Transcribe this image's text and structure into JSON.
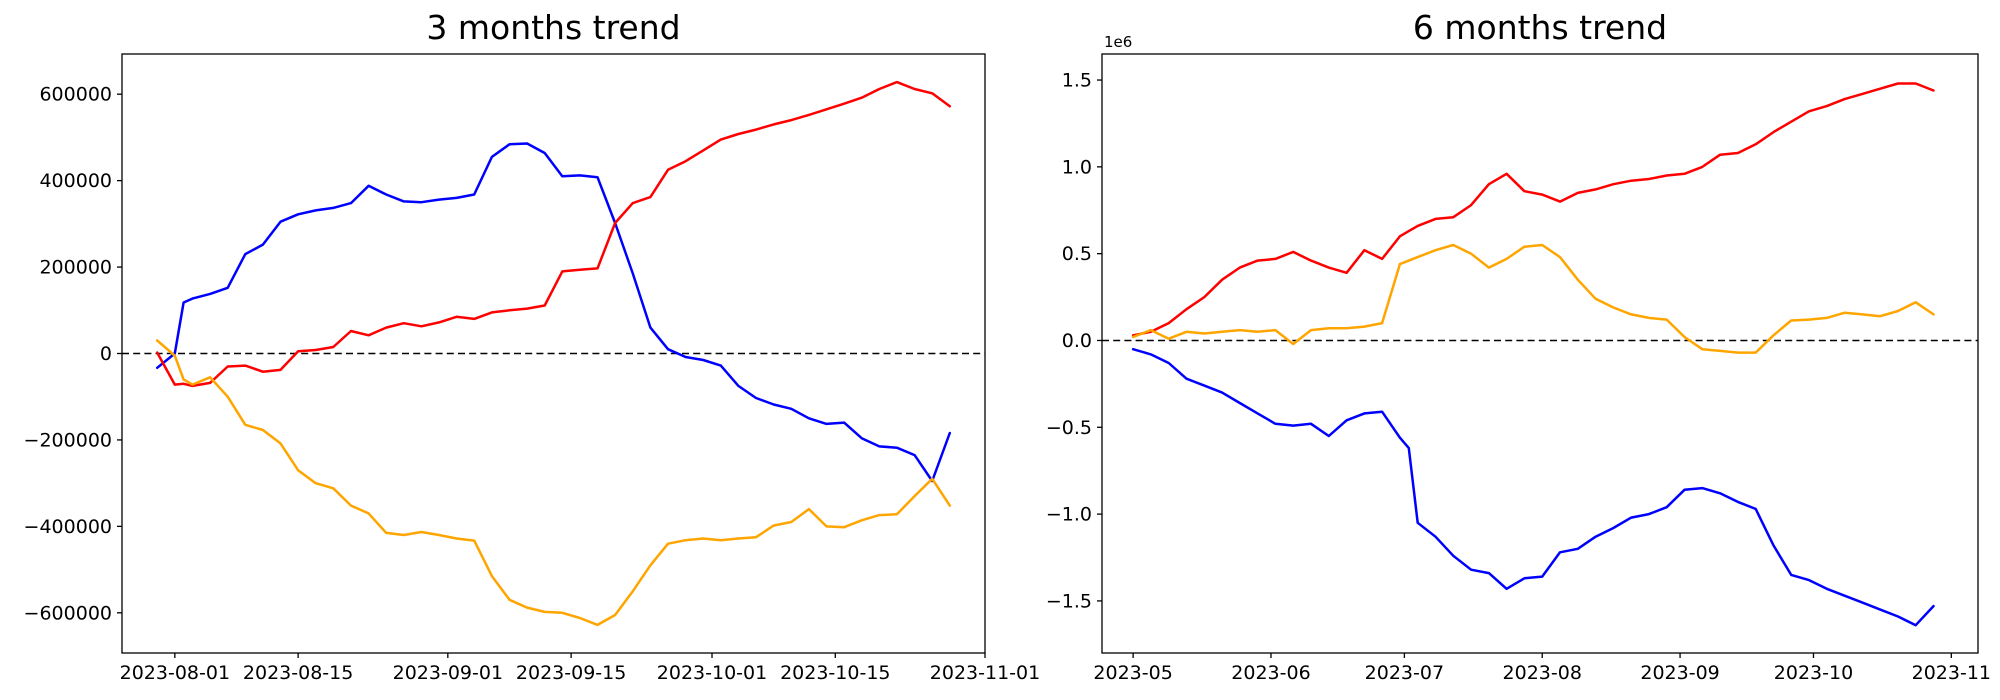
{
  "figure": {
    "background": "#ffffff"
  },
  "chart_data": [
    {
      "type": "line",
      "title": "3 months trend",
      "xlabel": "",
      "ylabel": "",
      "grid": false,
      "legend": "none",
      "zero_line": true,
      "xlim": [
        "2023-07-26",
        "2023-11-01"
      ],
      "ylim": [
        -693000,
        693000
      ],
      "x_ticks": [
        "2023-08-01",
        "2023-08-15",
        "2023-09-01",
        "2023-09-15",
        "2023-10-01",
        "2023-10-15",
        "2023-11-01"
      ],
      "x_tick_labels": [
        "2023-08-01",
        "2023-08-15",
        "2023-09-01",
        "2023-09-15",
        "2023-10-01",
        "2023-10-15",
        "2023-11-01"
      ],
      "y_ticks": [
        600000,
        400000,
        200000,
        0,
        -200000,
        -400000,
        -600000
      ],
      "y_tick_labels": [
        "600000",
        "400000",
        "200000",
        "0",
        "−200000",
        "−400000",
        "−600000"
      ],
      "x": [
        "2023-07-30",
        "2023-08-01",
        "2023-08-02",
        "2023-08-03",
        "2023-08-05",
        "2023-08-07",
        "2023-08-09",
        "2023-08-11",
        "2023-08-13",
        "2023-08-15",
        "2023-08-17",
        "2023-08-19",
        "2023-08-21",
        "2023-08-23",
        "2023-08-25",
        "2023-08-27",
        "2023-08-29",
        "2023-08-31",
        "2023-09-02",
        "2023-09-04",
        "2023-09-06",
        "2023-09-08",
        "2023-09-10",
        "2023-09-12",
        "2023-09-14",
        "2023-09-16",
        "2023-09-18",
        "2023-09-20",
        "2023-09-22",
        "2023-09-24",
        "2023-09-26",
        "2023-09-28",
        "2023-09-30",
        "2023-10-02",
        "2023-10-04",
        "2023-10-06",
        "2023-10-08",
        "2023-10-10",
        "2023-10-12",
        "2023-10-14",
        "2023-10-16",
        "2023-10-18",
        "2023-10-20",
        "2023-10-22",
        "2023-10-24",
        "2023-10-26",
        "2023-10-28"
      ],
      "series": [
        {
          "name": "blue",
          "color": "#0000ff",
          "values": [
            -33000,
            0,
            118000,
            127000,
            138000,
            152000,
            230000,
            252000,
            305000,
            322000,
            331000,
            337000,
            348000,
            388000,
            368000,
            352000,
            350000,
            356000,
            360000,
            368000,
            455000,
            484000,
            486000,
            464000,
            410000,
            412000,
            408000,
            302000,
            185000,
            60000,
            10000,
            -8000,
            -15000,
            -28000,
            -75000,
            -103000,
            -118000,
            -128000,
            -150000,
            -163000,
            -160000,
            -196000,
            -215000,
            -218000,
            -235000,
            -295000,
            -184000
          ]
        },
        {
          "name": "red",
          "color": "#ff0000",
          "values": [
            2000,
            -72000,
            -70000,
            -75000,
            -68000,
            -30000,
            -28000,
            -42000,
            -38000,
            5000,
            8000,
            15000,
            52000,
            42000,
            60000,
            70000,
            63000,
            72000,
            85000,
            80000,
            95000,
            100000,
            104000,
            111000,
            190000,
            194000,
            197000,
            302000,
            348000,
            362000,
            425000,
            445000,
            470000,
            495000,
            508000,
            518000,
            530000,
            540000,
            552000,
            565000,
            578000,
            592000,
            612000,
            628000,
            612000,
            602000,
            572000
          ]
        },
        {
          "name": "orange",
          "color": "#ffa500",
          "values": [
            30000,
            -5000,
            -60000,
            -72000,
            -55000,
            -100000,
            -165000,
            -177000,
            -208000,
            -270000,
            -300000,
            -312000,
            -352000,
            -370000,
            -415000,
            -420000,
            -413000,
            -420000,
            -428000,
            -433000,
            -515000,
            -570000,
            -588000,
            -598000,
            -600000,
            -612000,
            -628000,
            -605000,
            -550000,
            -490000,
            -440000,
            -432000,
            -428000,
            -432000,
            -428000,
            -425000,
            -398000,
            -390000,
            -360000,
            -400000,
            -402000,
            -386000,
            -374000,
            -372000,
            -330000,
            -290000,
            -352000
          ]
        }
      ]
    },
    {
      "type": "line",
      "title": "6 months trend",
      "xlabel": "",
      "ylabel": "",
      "grid": false,
      "legend": "none",
      "zero_line": true,
      "y_offset_label": "1e6",
      "xlim": [
        "2023-04-24",
        "2023-11-07"
      ],
      "ylim": [
        -1800000,
        1650000
      ],
      "x_ticks": [
        "2023-05-01",
        "2023-06-01",
        "2023-07-01",
        "2023-08-01",
        "2023-09-01",
        "2023-10-01",
        "2023-11-01"
      ],
      "x_tick_labels": [
        "2023-05",
        "2023-06",
        "2023-07",
        "2023-08",
        "2023-09",
        "2023-10",
        "2023-11"
      ],
      "y_ticks": [
        1500000,
        1000000,
        500000,
        0,
        -500000,
        -1000000,
        -1500000
      ],
      "y_tick_labels": [
        "1.5",
        "1.0",
        "0.5",
        "0.0",
        "−0.5",
        "−1.0",
        "−1.5"
      ],
      "x": [
        "2023-05-01",
        "2023-05-05",
        "2023-05-09",
        "2023-05-13",
        "2023-05-17",
        "2023-05-21",
        "2023-05-25",
        "2023-05-29",
        "2023-06-02",
        "2023-06-06",
        "2023-06-10",
        "2023-06-14",
        "2023-06-18",
        "2023-06-22",
        "2023-06-26",
        "2023-06-30",
        "2023-07-02",
        "2023-07-04",
        "2023-07-08",
        "2023-07-12",
        "2023-07-16",
        "2023-07-20",
        "2023-07-24",
        "2023-07-28",
        "2023-08-01",
        "2023-08-05",
        "2023-08-09",
        "2023-08-13",
        "2023-08-17",
        "2023-08-21",
        "2023-08-25",
        "2023-08-29",
        "2023-09-02",
        "2023-09-06",
        "2023-09-10",
        "2023-09-14",
        "2023-09-18",
        "2023-09-22",
        "2023-09-26",
        "2023-09-30",
        "2023-10-04",
        "2023-10-08",
        "2023-10-12",
        "2023-10-16",
        "2023-10-20",
        "2023-10-24",
        "2023-10-28"
      ],
      "series": [
        {
          "name": "red",
          "color": "#ff0000",
          "values": [
            30000,
            50000,
            100000,
            180000,
            250000,
            350000,
            420000,
            460000,
            470000,
            510000,
            460000,
            420000,
            390000,
            520000,
            470000,
            600000,
            630000,
            660000,
            700000,
            710000,
            780000,
            900000,
            960000,
            860000,
            840000,
            800000,
            850000,
            870000,
            900000,
            920000,
            930000,
            950000,
            960000,
            1000000,
            1070000,
            1080000,
            1130000,
            1200000,
            1260000,
            1320000,
            1350000,
            1390000,
            1420000,
            1450000,
            1480000,
            1480000,
            1440000
          ]
        },
        {
          "name": "orange",
          "color": "#ffa500",
          "values": [
            20000,
            60000,
            10000,
            50000,
            40000,
            50000,
            60000,
            50000,
            60000,
            -20000,
            60000,
            70000,
            70000,
            80000,
            100000,
            440000,
            460000,
            480000,
            520000,
            550000,
            500000,
            420000,
            470000,
            540000,
            550000,
            480000,
            350000,
            240000,
            190000,
            150000,
            130000,
            120000,
            20000,
            -50000,
            -60000,
            -70000,
            -70000,
            30000,
            115000,
            120000,
            130000,
            160000,
            150000,
            140000,
            170000,
            220000,
            150000
          ]
        },
        {
          "name": "blue",
          "color": "#0000ff",
          "values": [
            -50000,
            -80000,
            -130000,
            -220000,
            -260000,
            -300000,
            -360000,
            -420000,
            -480000,
            -490000,
            -480000,
            -550000,
            -460000,
            -420000,
            -410000,
            -560000,
            -620000,
            -1050000,
            -1130000,
            -1240000,
            -1320000,
            -1340000,
            -1430000,
            -1370000,
            -1360000,
            -1220000,
            -1200000,
            -1130000,
            -1080000,
            -1020000,
            -1000000,
            -960000,
            -860000,
            -850000,
            -880000,
            -930000,
            -970000,
            -1180000,
            -1350000,
            -1380000,
            -1430000,
            -1470000,
            -1510000,
            -1550000,
            -1590000,
            -1640000,
            -1530000
          ]
        }
      ]
    }
  ]
}
